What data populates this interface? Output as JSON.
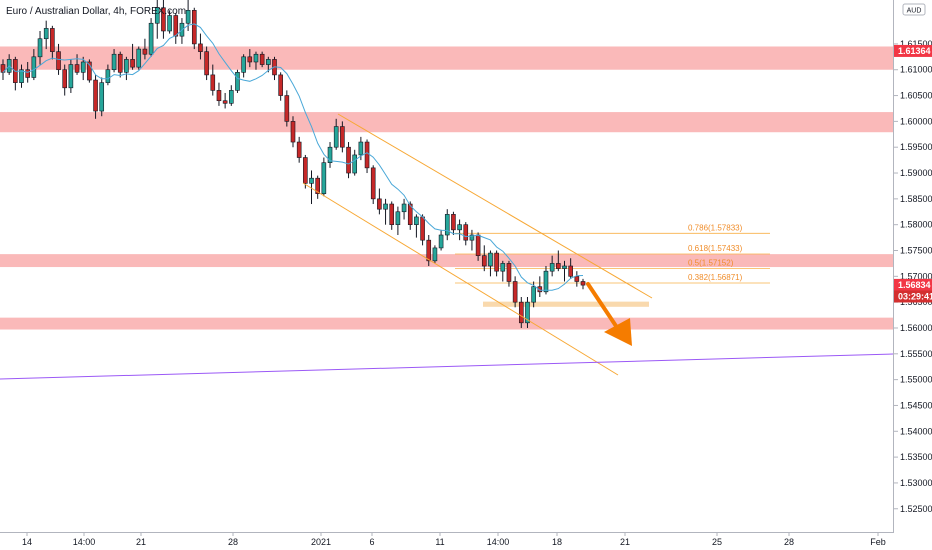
{
  "header": {
    "title": "Euro / Australian Dollar, 4h, FOREX.com"
  },
  "axis_badge": {
    "currency": "AUD"
  },
  "chart_data": {
    "type": "candlestick",
    "title": "Euro / Australian Dollar, 4h, FOREX.com",
    "ylim": [
      1.5205,
      1.6235
    ],
    "y_ticks": [
      "1.61500",
      "1.61000",
      "1.60500",
      "1.60000",
      "1.59500",
      "1.59000",
      "1.58500",
      "1.58000",
      "1.57500",
      "1.57000",
      "1.56500",
      "1.56000",
      "1.55500",
      "1.55000",
      "1.54500",
      "1.54000",
      "1.53500",
      "1.53000",
      "1.52500"
    ],
    "x_ticks": [
      "14",
      "14:00",
      "21",
      "28",
      "2021",
      "6",
      "11",
      "14:00",
      "18",
      "21",
      "25",
      "28",
      "Feb"
    ],
    "price_labels": [
      {
        "text": "1.61364",
        "value": 1.61364,
        "color": "#f23645"
      },
      {
        "text": "1.56834",
        "value": 1.56834,
        "color": "#f23645"
      },
      {
        "text": "03:29:41",
        "value": 1.5661,
        "color": "#d32f2f"
      }
    ],
    "zones": [
      {
        "from": 1.61,
        "to": 1.6145
      },
      {
        "from": 1.5979,
        "to": 1.6018
      },
      {
        "from": 1.5718,
        "to": 1.5743
      },
      {
        "from": 1.5597,
        "to": 1.562
      }
    ],
    "fib_levels": [
      {
        "label": "0.786(1.57833)",
        "value": 1.57833
      },
      {
        "label": "0.618(1.57433)",
        "value": 1.57433
      },
      {
        "label": "0.5(1.57152)",
        "value": 1.57152
      },
      {
        "label": "0.382(1.56871)",
        "value": 1.56871
      }
    ],
    "colors": {
      "up": "#26a69a",
      "down": "#c62828",
      "ma": "#4aa8d8",
      "channel": "#f7a835",
      "trend": "#9b59f6",
      "zone": "#f9a8a8",
      "arrow": "#f57c00"
    },
    "candles": [
      [
        1.611,
        1.612,
        1.608,
        1.6095
      ],
      [
        1.6095,
        1.613,
        1.609,
        1.612
      ],
      [
        1.612,
        1.6125,
        1.606,
        1.6075
      ],
      [
        1.6075,
        1.611,
        1.6065,
        1.61
      ],
      [
        1.61,
        1.6115,
        1.6075,
        1.6085
      ],
      [
        1.6085,
        1.614,
        1.608,
        1.6125
      ],
      [
        1.6125,
        1.6175,
        1.611,
        1.616
      ],
      [
        1.616,
        1.6195,
        1.614,
        1.618
      ],
      [
        1.618,
        1.6185,
        1.612,
        1.6135
      ],
      [
        1.6135,
        1.615,
        1.609,
        1.61
      ],
      [
        1.61,
        1.611,
        1.605,
        1.6065
      ],
      [
        1.6065,
        1.612,
        1.6055,
        1.611
      ],
      [
        1.611,
        1.613,
        1.609,
        1.6095
      ],
      [
        1.6095,
        1.6125,
        1.608,
        1.6115
      ],
      [
        1.6115,
        1.612,
        1.6075,
        1.608
      ],
      [
        1.608,
        1.609,
        1.6005,
        1.602
      ],
      [
        1.602,
        1.6085,
        1.601,
        1.6075
      ],
      [
        1.6075,
        1.611,
        1.607,
        1.61
      ],
      [
        1.61,
        1.614,
        1.6095,
        1.613
      ],
      [
        1.613,
        1.6135,
        1.6085,
        1.6095
      ],
      [
        1.6095,
        1.6125,
        1.608,
        1.612
      ],
      [
        1.612,
        1.615,
        1.61,
        1.6105
      ],
      [
        1.6105,
        1.6145,
        1.61,
        1.614
      ],
      [
        1.614,
        1.616,
        1.612,
        1.613
      ],
      [
        1.613,
        1.62,
        1.6125,
        1.619
      ],
      [
        1.619,
        1.624,
        1.616,
        1.622
      ],
      [
        1.622,
        1.6235,
        1.616,
        1.6175
      ],
      [
        1.6175,
        1.6215,
        1.617,
        1.6205
      ],
      [
        1.6205,
        1.621,
        1.615,
        1.6165
      ],
      [
        1.6165,
        1.62,
        1.615,
        1.619
      ],
      [
        1.619,
        1.6235,
        1.6175,
        1.6215
      ],
      [
        1.6215,
        1.622,
        1.614,
        1.615
      ],
      [
        1.615,
        1.617,
        1.612,
        1.6135
      ],
      [
        1.6135,
        1.6145,
        1.608,
        1.609
      ],
      [
        1.609,
        1.611,
        1.605,
        1.606
      ],
      [
        1.606,
        1.6075,
        1.603,
        1.604
      ],
      [
        1.604,
        1.6055,
        1.6025,
        1.6035
      ],
      [
        1.6035,
        1.607,
        1.603,
        1.606
      ],
      [
        1.606,
        1.61,
        1.6055,
        1.6095
      ],
      [
        1.6095,
        1.613,
        1.6085,
        1.6125
      ],
      [
        1.6125,
        1.614,
        1.6105,
        1.6115
      ],
      [
        1.6115,
        1.6135,
        1.61,
        1.613
      ],
      [
        1.613,
        1.6135,
        1.6105,
        1.611
      ],
      [
        1.611,
        1.6125,
        1.6095,
        1.612
      ],
      [
        1.612,
        1.6125,
        1.608,
        1.609
      ],
      [
        1.609,
        1.6095,
        1.604,
        1.605
      ],
      [
        1.605,
        1.606,
        1.599,
        1.6
      ],
      [
        1.6,
        1.601,
        1.595,
        1.596
      ],
      [
        1.596,
        1.597,
        1.592,
        1.593
      ],
      [
        1.593,
        1.5935,
        1.587,
        1.588
      ],
      [
        1.588,
        1.5905,
        1.584,
        1.589
      ],
      [
        1.589,
        1.5895,
        1.585,
        1.586
      ],
      [
        1.586,
        1.593,
        1.5855,
        1.592
      ],
      [
        1.592,
        1.596,
        1.591,
        1.595
      ],
      [
        1.595,
        1.6005,
        1.5945,
        1.599
      ],
      [
        1.599,
        1.6,
        1.594,
        1.595
      ],
      [
        1.595,
        1.596,
        1.589,
        1.59
      ],
      [
        1.59,
        1.5945,
        1.5895,
        1.5935
      ],
      [
        1.5935,
        1.597,
        1.5925,
        1.596
      ],
      [
        1.596,
        1.5965,
        1.59,
        1.591
      ],
      [
        1.591,
        1.5915,
        1.584,
        1.585
      ],
      [
        1.585,
        1.587,
        1.582,
        1.583
      ],
      [
        1.583,
        1.585,
        1.58,
        1.584
      ],
      [
        1.584,
        1.5845,
        1.579,
        1.58
      ],
      [
        1.58,
        1.5835,
        1.578,
        1.5825
      ],
      [
        1.5825,
        1.585,
        1.581,
        1.584
      ],
      [
        1.584,
        1.5845,
        1.579,
        1.58
      ],
      [
        1.58,
        1.582,
        1.5775,
        1.5815
      ],
      [
        1.5815,
        1.582,
        1.576,
        1.577
      ],
      [
        1.577,
        1.578,
        1.572,
        1.573
      ],
      [
        1.573,
        1.576,
        1.5725,
        1.5755
      ],
      [
        1.5755,
        1.579,
        1.575,
        1.578
      ],
      [
        1.578,
        1.583,
        1.577,
        1.582
      ],
      [
        1.582,
        1.5825,
        1.578,
        1.579
      ],
      [
        1.579,
        1.581,
        1.577,
        1.58
      ],
      [
        1.58,
        1.5805,
        1.576,
        1.577
      ],
      [
        1.577,
        1.579,
        1.575,
        1.578
      ],
      [
        1.578,
        1.5785,
        1.573,
        1.574
      ],
      [
        1.574,
        1.576,
        1.571,
        1.572
      ],
      [
        1.572,
        1.575,
        1.57,
        1.5745
      ],
      [
        1.5745,
        1.575,
        1.57,
        1.571
      ],
      [
        1.571,
        1.573,
        1.569,
        1.5725
      ],
      [
        1.5725,
        1.573,
        1.568,
        1.569
      ],
      [
        1.569,
        1.57,
        1.564,
        1.565
      ],
      [
        1.565,
        1.566,
        1.56,
        1.561
      ],
      [
        1.561,
        1.566,
        1.56,
        1.565
      ],
      [
        1.565,
        1.569,
        1.564,
        1.568
      ],
      [
        1.568,
        1.57,
        1.566,
        1.567
      ],
      [
        1.567,
        1.572,
        1.5665,
        1.571
      ],
      [
        1.571,
        1.574,
        1.57,
        1.5725
      ],
      [
        1.5725,
        1.575,
        1.571,
        1.5715
      ],
      [
        1.5715,
        1.573,
        1.569,
        1.572
      ],
      [
        1.572,
        1.5735,
        1.5695,
        1.57
      ],
      [
        1.57,
        1.571,
        1.568,
        1.569
      ],
      [
        1.569,
        1.5695,
        1.5675,
        1.5683
      ]
    ]
  }
}
